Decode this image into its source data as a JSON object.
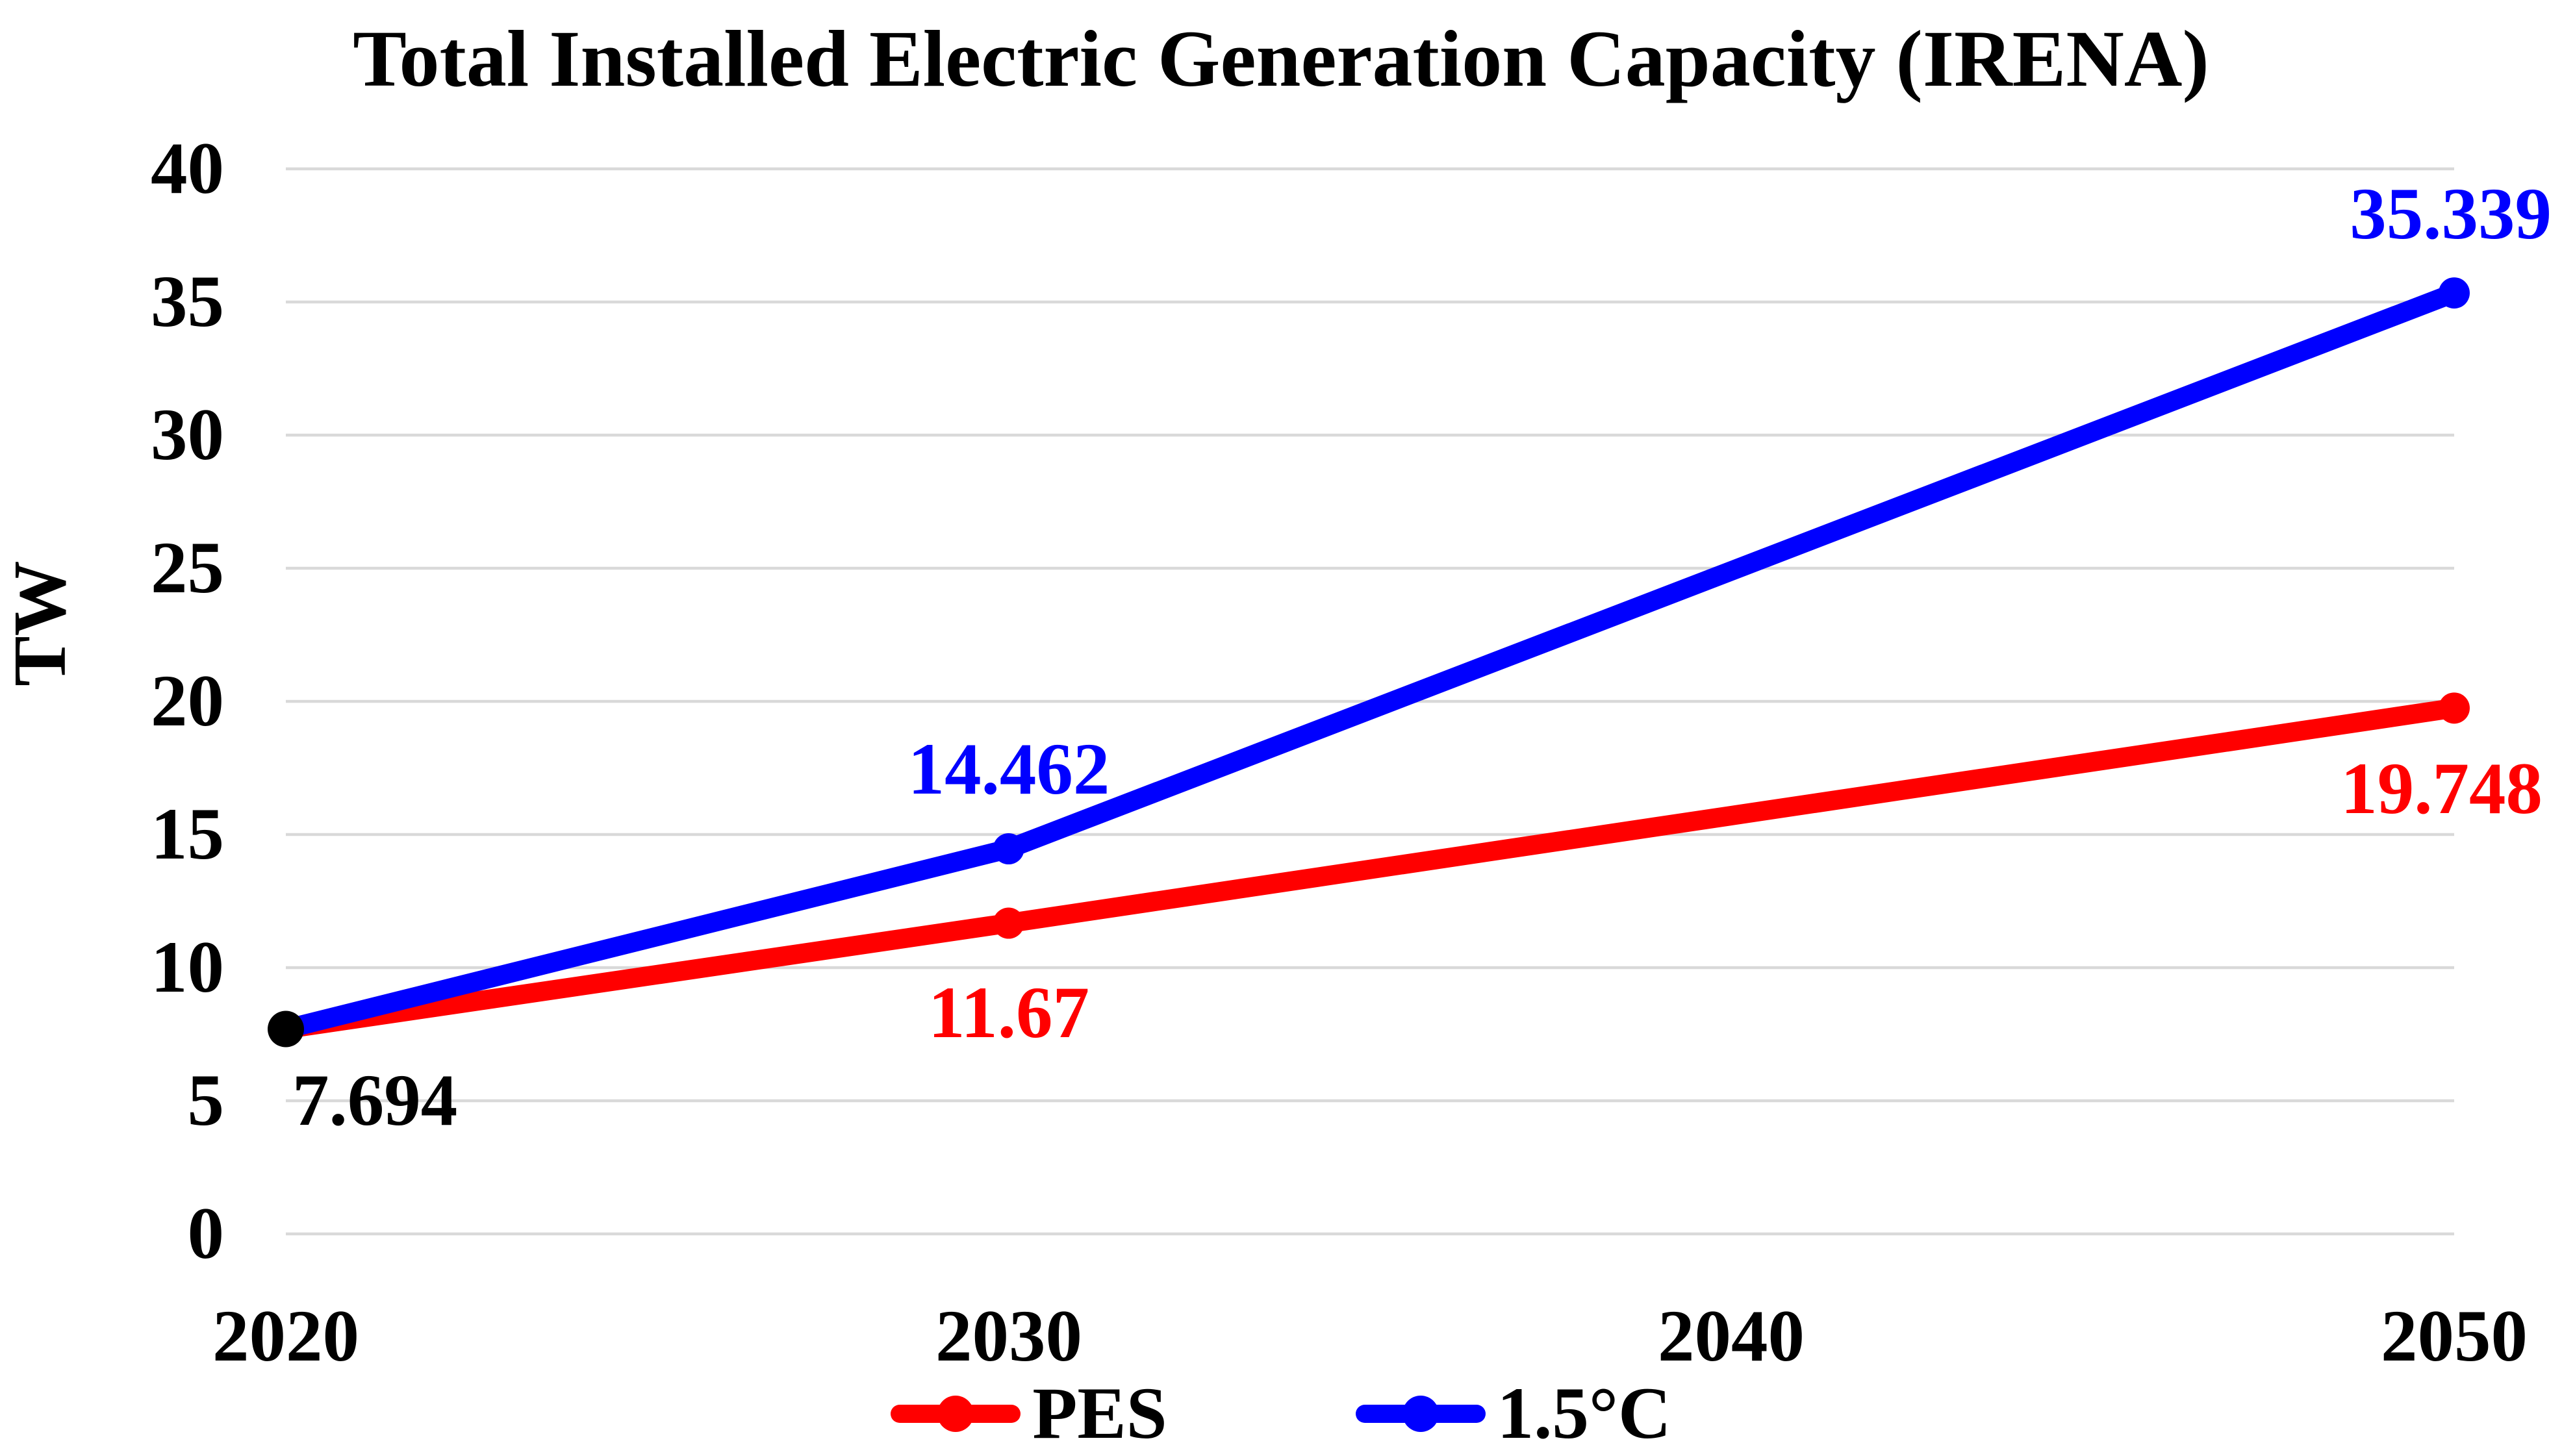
{
  "title": "Total Installed Electric Generation Capacity (IRENA)",
  "y_axis": {
    "label": "TW",
    "ticks": [
      "40",
      "35",
      "30",
      "25",
      "20",
      "15",
      "10",
      "5",
      "0"
    ]
  },
  "x_axis": {
    "ticks": [
      "2020",
      "2030",
      "2040",
      "2050"
    ]
  },
  "labels": {
    "start": "7.694",
    "pes_2030": "11.67",
    "pes_2050": "19.748",
    "c15_2030": "14.462",
    "c15_2050": "35.339"
  },
  "legend": [
    {
      "label": "PES",
      "color": "#FF0000"
    },
    {
      "label": "1.5°C",
      "color": "#0000FF"
    }
  ],
  "colors": {
    "grid": "#D9D9D9",
    "text": "#000000",
    "pes": "#FF0000",
    "c15": "#0000FF",
    "start_dot": "#000000"
  },
  "chart_data": {
    "type": "line",
    "title": "Total Installed Electric Generation Capacity (IRENA)",
    "xlabel": "",
    "ylabel": "TW",
    "x_categories": [
      "2020",
      "2030",
      "2040",
      "2050"
    ],
    "x_range": [
      2020,
      2050
    ],
    "ylim": [
      0,
      40
    ],
    "y_tick_step": 5,
    "grid": "horizontal",
    "legend_position": "bottom-center",
    "start_marker": {
      "x": 2020,
      "value": 7.694,
      "color": "#000000",
      "label": "7.694"
    },
    "series": [
      {
        "name": "PES",
        "color": "#FF0000",
        "x": [
          2020,
          2030,
          2050
        ],
        "values": [
          7.694,
          11.67,
          19.748
        ],
        "point_labels": [
          "7.694",
          "11.67",
          "19.748"
        ]
      },
      {
        "name": "1.5°C",
        "color": "#0000FF",
        "x": [
          2020,
          2030,
          2050
        ],
        "values": [
          7.694,
          14.462,
          35.339
        ],
        "point_labels": [
          "7.694",
          "14.462",
          "35.339"
        ]
      }
    ]
  }
}
